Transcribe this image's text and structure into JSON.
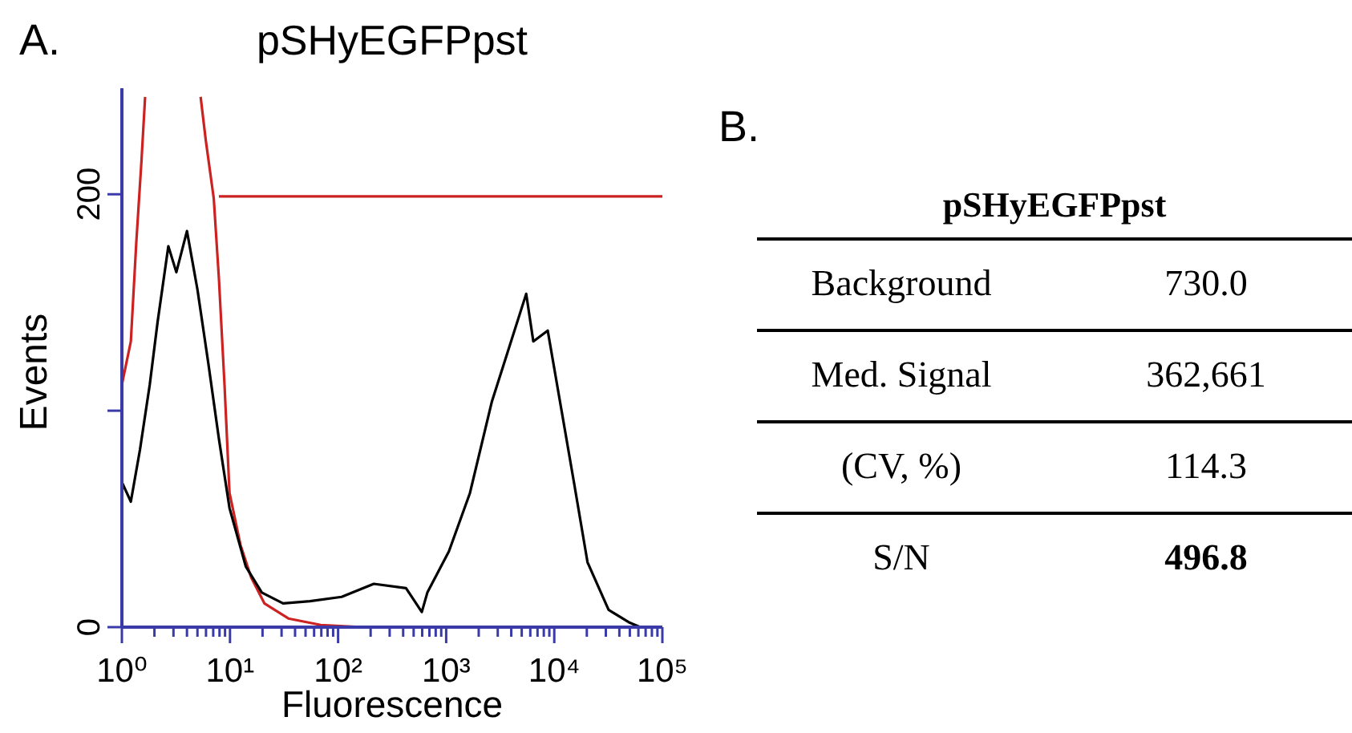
{
  "chart_data": [
    {
      "type": "line",
      "title": "pSHyEGFPpst",
      "xlabel": "Fluorescence",
      "ylabel": "Events",
      "annotations": [
        "A."
      ],
      "log": "x",
      "xlim": [
        1,
        100000
      ],
      "ylim": [
        0,
        249
      ],
      "xticks": [
        {
          "value": 1,
          "label": "10⁰"
        },
        {
          "value": 2,
          "label": null
        },
        {
          "value": 3,
          "label": null
        },
        {
          "value": 4,
          "label": null
        },
        {
          "value": 5,
          "label": null
        },
        {
          "value": 6,
          "label": null
        },
        {
          "value": 7,
          "label": null
        },
        {
          "value": 8,
          "label": null
        },
        {
          "value": 9,
          "label": null
        },
        {
          "value": 10,
          "label": "10¹"
        },
        {
          "value": 20,
          "label": null
        },
        {
          "value": 30,
          "label": null
        },
        {
          "value": 40,
          "label": null
        },
        {
          "value": 50,
          "label": null
        },
        {
          "value": 60,
          "label": null
        },
        {
          "value": 70,
          "label": null
        },
        {
          "value": 80,
          "label": null
        },
        {
          "value": 90,
          "label": null
        },
        {
          "value": 100,
          "label": "10²"
        },
        {
          "value": 200,
          "label": null
        },
        {
          "value": 300,
          "label": null
        },
        {
          "value": 400,
          "label": null
        },
        {
          "value": 500,
          "label": null
        },
        {
          "value": 600,
          "label": null
        },
        {
          "value": 700,
          "label": null
        },
        {
          "value": 800,
          "label": null
        },
        {
          "value": 900,
          "label": null
        },
        {
          "value": 1000,
          "label": "10³"
        },
        {
          "value": 2000,
          "label": null
        },
        {
          "value": 3000,
          "label": null
        },
        {
          "value": 4000,
          "label": null
        },
        {
          "value": 5000,
          "label": null
        },
        {
          "value": 6000,
          "label": null
        },
        {
          "value": 7000,
          "label": null
        },
        {
          "value": 8000,
          "label": null
        },
        {
          "value": 9000,
          "label": null
        },
        {
          "value": 10000,
          "label": "10⁴"
        },
        {
          "value": 20000,
          "label": null
        },
        {
          "value": 30000,
          "label": null
        },
        {
          "value": 40000,
          "label": null
        },
        {
          "value": 50000,
          "label": null
        },
        {
          "value": 60000,
          "label": null
        },
        {
          "value": 70000,
          "label": null
        },
        {
          "value": 80000,
          "label": null
        },
        {
          "value": 90000,
          "label": null
        },
        {
          "value": 100000,
          "label": "10⁵"
        }
      ],
      "yticks": [
        0,
        {
          "value": 100,
          "label": null
        },
        200
      ],
      "marker": "none",
      "line_style": "solid",
      "series": [
        {
          "color": "#cc2222",
          "x": [
            1.0,
            1.21,
            1.36,
            1.52,
            1.64,
            3.0,
            5.35,
            5.97,
            7.08,
            7.9,
            8.9,
            9.9,
            12.5,
            15.7,
            20.8,
            34.7,
            69,
            170
          ],
          "values": [
            112,
            132,
            178,
            216,
            245,
            null,
            245,
            225,
            198,
            161,
            112,
            62,
            38,
            23,
            11,
            4,
            1,
            0
          ]
        },
        {
          "color": "#cc2222",
          "x": [
            7.9,
            100000
          ],
          "values": [
            199,
            199
          ]
        },
        {
          "color": "#000000",
          "x": [
            1.0,
            1.21,
            1.47,
            1.81,
            2.14,
            2.69,
            3.19,
            4.0,
            5.0,
            6.3,
            7.9,
            9.9,
            14.0,
            19.7,
            31,
            55,
            108,
            214,
            425,
            595,
            670,
            1060,
            1660,
            2640,
            3700,
            5500,
            6400,
            8700,
            11500,
            15200,
            20300,
            31800,
            50000,
            62500
          ],
          "values": [
            67,
            58,
            82,
            112,
            141,
            176,
            164,
            183,
            156,
            122,
            87,
            55,
            28,
            16,
            11,
            12,
            14,
            20,
            18,
            7,
            16,
            35,
            62,
            104,
            127,
            154,
            132,
            137,
            102,
            67,
            30,
            8,
            2,
            0
          ]
        }
      ]
    },
    {
      "type": "other",
      "title": "pSHyEGFPpst",
      "annotations": [
        "B."
      ],
      "categories": [
        "Background",
        "Med. Signal",
        "(CV, %)",
        "S/N"
      ],
      "value_labels": [
        "730.0",
        "362,661",
        "114.3",
        "496.8"
      ]
    }
  ]
}
